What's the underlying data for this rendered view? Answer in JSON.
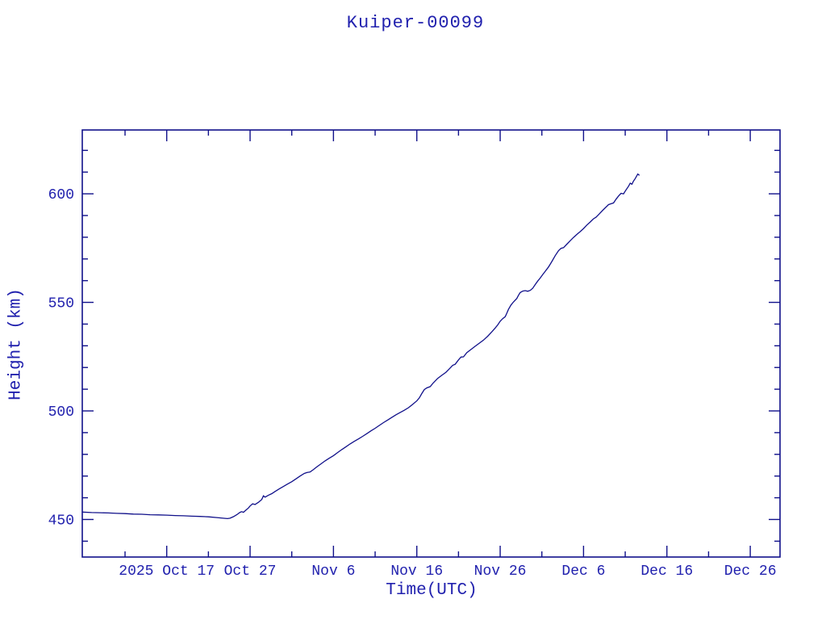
{
  "title": "Kuiper-00099",
  "colors": {
    "background": "#ffffff",
    "text": "#2121ae",
    "axis": "#10108a",
    "line": "#10108a"
  },
  "chart_data": {
    "type": "line",
    "title": "Kuiper-00099",
    "xlabel": "Time(UTC)",
    "ylabel": "Height (km)",
    "x_unit": "days since 2025 Oct 17 (UTC)",
    "x_range_days": [
      -10.13,
      73.57
    ],
    "x_major_ticks": [
      {
        "day": 0,
        "label": "2025 Oct 17"
      },
      {
        "day": 10,
        "label": "Oct 27"
      },
      {
        "day": 20,
        "label": "Nov  6"
      },
      {
        "day": 30,
        "label": "Nov 16"
      },
      {
        "day": 40,
        "label": "Nov 26"
      },
      {
        "day": 50,
        "label": "Dec  6"
      },
      {
        "day": 60,
        "label": "Dec 16"
      },
      {
        "day": 70,
        "label": "Dec 26"
      }
    ],
    "x_minor_tick_days": [
      -5,
      5,
      15,
      25,
      35,
      45,
      55,
      65
    ],
    "ylim": [
      432.7,
      629.4
    ],
    "y_major_ticks": [
      450,
      500,
      550,
      600
    ],
    "y_minor_ticks": [
      440,
      460,
      470,
      480,
      490,
      510,
      520,
      530,
      540,
      560,
      570,
      580,
      590,
      610,
      620
    ],
    "grid": false,
    "legend": "none",
    "series": [
      {
        "name": "height_km",
        "points": [
          [
            -10.1,
            453.4
          ],
          [
            -9,
            453.2
          ],
          [
            -8,
            453.1
          ],
          [
            -7,
            453.0
          ],
          [
            -6,
            452.8
          ],
          [
            -5,
            452.7
          ],
          [
            -4,
            452.5
          ],
          [
            -3,
            452.4
          ],
          [
            -2,
            452.2
          ],
          [
            -1,
            452.1
          ],
          [
            0,
            452.0
          ],
          [
            1,
            451.8
          ],
          [
            2,
            451.7
          ],
          [
            3,
            451.5
          ],
          [
            4,
            451.4
          ],
          [
            5,
            451.2
          ],
          [
            6,
            450.9
          ],
          [
            6.5,
            450.7
          ],
          [
            7,
            450.5
          ],
          [
            7.3,
            450.4
          ],
          [
            7.6,
            450.6
          ],
          [
            8,
            451.3
          ],
          [
            8.4,
            452.2
          ],
          [
            8.8,
            453.3
          ],
          [
            9,
            453.6
          ],
          [
            9.2,
            453.3
          ],
          [
            9.5,
            454.3
          ],
          [
            9.8,
            455.3
          ],
          [
            10,
            456.2
          ],
          [
            10.3,
            457.2
          ],
          [
            10.6,
            456.9
          ],
          [
            11,
            457.9
          ],
          [
            11.4,
            459.2
          ],
          [
            11.6,
            460.9
          ],
          [
            11.8,
            460.3
          ],
          [
            12.2,
            461.2
          ],
          [
            12.6,
            461.9
          ],
          [
            13,
            462.9
          ],
          [
            13.5,
            464.1
          ],
          [
            14,
            465.2
          ],
          [
            14.5,
            466.3
          ],
          [
            15,
            467.4
          ],
          [
            15.5,
            468.7
          ],
          [
            16,
            470.0
          ],
          [
            16.5,
            471.2
          ],
          [
            16.8,
            471.6
          ],
          [
            17.2,
            471.9
          ],
          [
            17.6,
            473.0
          ],
          [
            18,
            474.2
          ],
          [
            18.5,
            475.6
          ],
          [
            19,
            477.0
          ],
          [
            19.5,
            478.2
          ],
          [
            20,
            479.4
          ],
          [
            20.5,
            480.8
          ],
          [
            21,
            482.2
          ],
          [
            21.5,
            483.5
          ],
          [
            22,
            484.8
          ],
          [
            22.5,
            486.0
          ],
          [
            23,
            487.1
          ],
          [
            23.5,
            488.3
          ],
          [
            24,
            489.5
          ],
          [
            24.5,
            490.8
          ],
          [
            25,
            492.0
          ],
          [
            25.5,
            493.3
          ],
          [
            26,
            494.6
          ],
          [
            26.5,
            495.8
          ],
          [
            27,
            497.0
          ],
          [
            27.5,
            498.2
          ],
          [
            28,
            499.3
          ],
          [
            28.5,
            500.3
          ],
          [
            29,
            501.5
          ],
          [
            29.5,
            503.0
          ],
          [
            30,
            504.6
          ],
          [
            30.3,
            506.0
          ],
          [
            30.6,
            508.0
          ],
          [
            30.9,
            509.8
          ],
          [
            31.2,
            510.6
          ],
          [
            31.6,
            511.2
          ],
          [
            32,
            513.0
          ],
          [
            32.5,
            515.0
          ],
          [
            33,
            516.4
          ],
          [
            33.5,
            517.8
          ],
          [
            34,
            519.8
          ],
          [
            34.3,
            521.0
          ],
          [
            34.6,
            521.5
          ],
          [
            35,
            523.5
          ],
          [
            35.3,
            524.8
          ],
          [
            35.6,
            524.9
          ],
          [
            36,
            526.8
          ],
          [
            36.5,
            528.3
          ],
          [
            37,
            529.8
          ],
          [
            37.5,
            531.2
          ],
          [
            38,
            532.6
          ],
          [
            38.5,
            534.4
          ],
          [
            39,
            536.4
          ],
          [
            39.4,
            538.2
          ],
          [
            39.7,
            539.6
          ],
          [
            40,
            541.3
          ],
          [
            40.3,
            542.5
          ],
          [
            40.6,
            543.4
          ],
          [
            40.8,
            545.0
          ],
          [
            41,
            546.8
          ],
          [
            41.3,
            548.8
          ],
          [
            41.6,
            550.2
          ],
          [
            42,
            551.8
          ],
          [
            42.2,
            553.3
          ],
          [
            42.4,
            554.5
          ],
          [
            42.7,
            555.2
          ],
          [
            43,
            555.4
          ],
          [
            43.3,
            555.1
          ],
          [
            43.6,
            555.5
          ],
          [
            43.9,
            556.5
          ],
          [
            44.2,
            558.2
          ],
          [
            44.5,
            559.8
          ],
          [
            44.8,
            561.2
          ],
          [
            45.1,
            562.8
          ],
          [
            45.4,
            564.3
          ],
          [
            45.8,
            566.3
          ],
          [
            46.2,
            568.8
          ],
          [
            46.6,
            571.5
          ],
          [
            47,
            573.8
          ],
          [
            47.3,
            574.9
          ],
          [
            47.6,
            575.2
          ],
          [
            48,
            576.8
          ],
          [
            48.4,
            578.4
          ],
          [
            48.8,
            579.9
          ],
          [
            49.2,
            581.3
          ],
          [
            49.6,
            582.6
          ],
          [
            50,
            584.0
          ],
          [
            50.4,
            585.6
          ],
          [
            50.8,
            587.0
          ],
          [
            51.2,
            588.5
          ],
          [
            51.5,
            589.2
          ],
          [
            51.9,
            590.8
          ],
          [
            52.3,
            592.4
          ],
          [
            52.7,
            593.9
          ],
          [
            53,
            595.0
          ],
          [
            53.3,
            595.4
          ],
          [
            53.6,
            595.8
          ],
          [
            53.9,
            597.5
          ],
          [
            54.2,
            599.0
          ],
          [
            54.5,
            600.2
          ],
          [
            54.8,
            600.0
          ],
          [
            55.1,
            601.8
          ],
          [
            55.4,
            603.5
          ],
          [
            55.6,
            604.9
          ],
          [
            55.8,
            604.4
          ],
          [
            56,
            605.9
          ],
          [
            56.2,
            607.0
          ],
          [
            56.4,
            608.4
          ],
          [
            56.5,
            609.1
          ],
          [
            56.7,
            608.5
          ]
        ]
      }
    ]
  }
}
